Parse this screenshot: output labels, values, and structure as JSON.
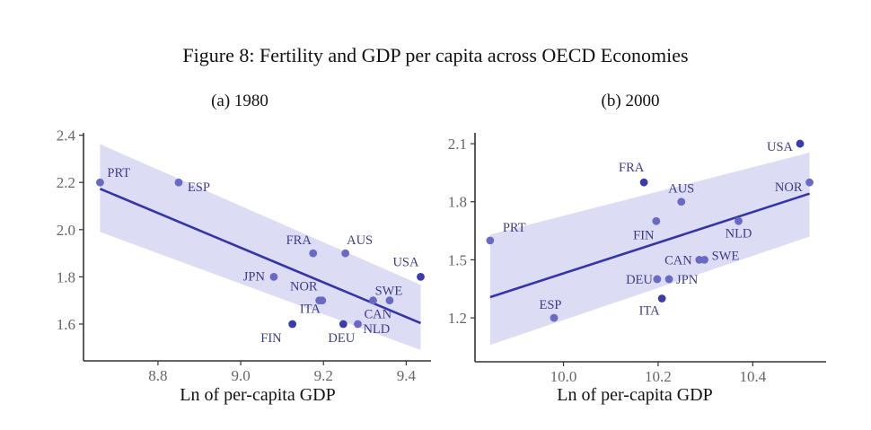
{
  "figure_title": "Figure 8: Fertility and GDP per capita across OECD Economies",
  "colors": {
    "point": "#3b3bb0",
    "point_light": "#6a6ac4",
    "line": "#3535a8",
    "band": "#dadaf3",
    "label": "#3c3c8c",
    "axis": "#333333",
    "tick_text": "#666666"
  },
  "chart_data": [
    {
      "type": "scatter",
      "title": "(a) 1980",
      "xlabel": "Ln of per-capita GDP",
      "ylabel": "",
      "xlim": [
        8.62,
        9.46
      ],
      "ylim": [
        1.444,
        2.41
      ],
      "xticks": [
        8.8,
        9.0,
        9.2,
        9.4
      ],
      "xtick_labels": [
        "8.8",
        "9.0",
        "9.2",
        "9.4"
      ],
      "yticks": [
        1.6,
        1.8,
        2.0,
        2.2,
        2.4
      ],
      "ytick_labels": [
        "1.6",
        "1.8",
        "2.0",
        "2.2",
        "2.4"
      ],
      "grid": false,
      "points": [
        {
          "label": "PRT",
          "x": 8.66,
          "y": 2.2
        },
        {
          "label": "ESP",
          "x": 8.85,
          "y": 2.2
        },
        {
          "label": "FRA",
          "x": 9.175,
          "y": 1.9
        },
        {
          "label": "AUS",
          "x": 9.253,
          "y": 1.9
        },
        {
          "label": "JPN",
          "x": 9.08,
          "y": 1.8
        },
        {
          "label": "USA",
          "x": 9.435,
          "y": 1.8
        },
        {
          "label": "NOR",
          "x": 9.19,
          "y": 1.7
        },
        {
          "label": "ITA",
          "x": 9.197,
          "y": 1.7
        },
        {
          "label": "CAN",
          "x": 9.32,
          "y": 1.7
        },
        {
          "label": "SWE",
          "x": 9.36,
          "y": 1.7
        },
        {
          "label": "FIN",
          "x": 9.125,
          "y": 1.6
        },
        {
          "label": "DEU",
          "x": 9.248,
          "y": 1.6
        },
        {
          "label": "NLD",
          "x": 9.283,
          "y": 1.6
        }
      ],
      "fit": {
        "x": [
          8.66,
          9.435
        ],
        "y": [
          2.173,
          1.604
        ]
      },
      "band": {
        "x": [
          8.66,
          9.435
        ],
        "upper": [
          2.362,
          1.766
        ],
        "lower": [
          1.99,
          1.49
        ]
      }
    },
    {
      "type": "scatter",
      "title": "(b) 2000",
      "xlabel": "Ln of per-capita GDP",
      "ylabel": "",
      "xlim": [
        9.813,
        10.555
      ],
      "ylim": [
        0.973,
        2.156
      ],
      "xticks": [
        10.0,
        10.2,
        10.4
      ],
      "xtick_labels": [
        "10.0",
        "10.2",
        "10.4"
      ],
      "yticks": [
        1.2,
        1.5,
        1.8,
        2.1
      ],
      "ytick_labels": [
        "1.2",
        "1.5",
        "1.8",
        "2.1"
      ],
      "grid": false,
      "points": [
        {
          "label": "PRT",
          "x": 9.845,
          "y": 1.6
        },
        {
          "label": "ESP",
          "x": 9.98,
          "y": 1.2
        },
        {
          "label": "FRA",
          "x": 10.17,
          "y": 1.9
        },
        {
          "label": "AUS",
          "x": 10.249,
          "y": 1.8
        },
        {
          "label": "FIN",
          "x": 10.196,
          "y": 1.7
        },
        {
          "label": "NLD",
          "x": 10.37,
          "y": 1.7
        },
        {
          "label": "CAN",
          "x": 10.287,
          "y": 1.5
        },
        {
          "label": "SWE",
          "x": 10.298,
          "y": 1.5
        },
        {
          "label": "DEU",
          "x": 10.198,
          "y": 1.4
        },
        {
          "label": "JPN",
          "x": 10.223,
          "y": 1.4
        },
        {
          "label": "ITA",
          "x": 10.208,
          "y": 1.3
        },
        {
          "label": "USA",
          "x": 10.5,
          "y": 2.1
        },
        {
          "label": "NOR",
          "x": 10.52,
          "y": 1.9
        }
      ],
      "fit": {
        "x": [
          9.845,
          10.52
        ],
        "y": [
          1.307,
          1.842
        ]
      },
      "band": {
        "x": [
          9.845,
          10.52
        ],
        "upper": [
          1.63,
          2.054
        ],
        "lower": [
          1.06,
          1.62
        ]
      }
    }
  ]
}
